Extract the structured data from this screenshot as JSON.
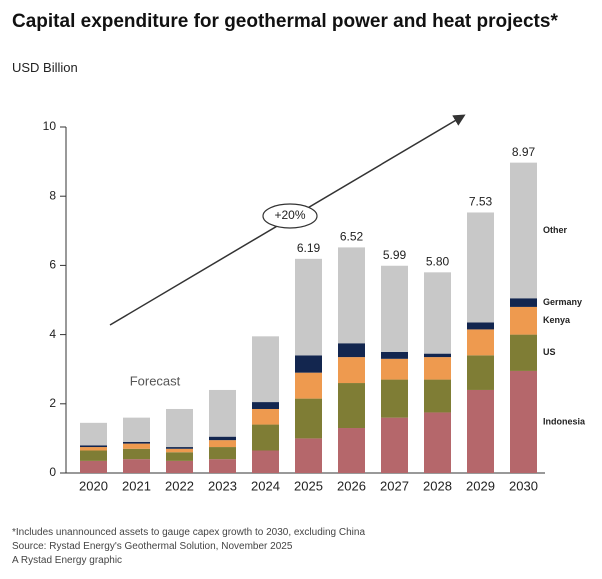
{
  "chart_data": {
    "type": "stacked_bar",
    "title": "Capital expenditure for geothermal power and heat projects*",
    "subtitle": "USD Billion",
    "categories": [
      "2020",
      "2021",
      "2022",
      "2023",
      "2024",
      "2025",
      "2026",
      "2027",
      "2028",
      "2029",
      "2030"
    ],
    "series": [
      {
        "name": "Indonesia",
        "color": "#b5676b",
        "values": [
          0.35,
          0.4,
          0.35,
          0.4,
          0.65,
          1.0,
          1.3,
          1.6,
          1.75,
          2.4,
          2.95
        ]
      },
      {
        "name": "US",
        "color": "#7f7d35",
        "values": [
          0.3,
          0.3,
          0.25,
          0.35,
          0.75,
          1.15,
          1.3,
          1.1,
          0.95,
          1.0,
          1.05
        ]
      },
      {
        "name": "Kenya",
        "color": "#ee9a4f",
        "values": [
          0.1,
          0.15,
          0.1,
          0.2,
          0.45,
          0.75,
          0.75,
          0.6,
          0.65,
          0.75,
          0.8
        ]
      },
      {
        "name": "Germany",
        "color": "#13264f",
        "values": [
          0.05,
          0.05,
          0.05,
          0.1,
          0.2,
          0.5,
          0.4,
          0.2,
          0.1,
          0.2,
          0.25
        ]
      },
      {
        "name": "Other",
        "color": "#c8c8c8",
        "values": [
          0.65,
          0.7,
          1.1,
          1.35,
          1.9,
          2.79,
          2.77,
          2.49,
          2.35,
          3.18,
          3.92
        ]
      }
    ],
    "totals": {
      "values": [
        null,
        null,
        null,
        null,
        null,
        6.19,
        6.52,
        5.99,
        5.8,
        7.53,
        8.97
      ],
      "value_labels": [
        null,
        null,
        null,
        null,
        null,
        "6.19",
        "6.52",
        "5.99",
        "5.80",
        "7.53",
        "8.97"
      ]
    },
    "ylim": [
      0,
      10
    ],
    "yticks": [
      0,
      2,
      4,
      6,
      8,
      10
    ],
    "annotations": [
      "+20%",
      "Forecast"
    ],
    "footnotes": [
      "*Includes unannounced assets to gauge capex growth to 2030, excluding China",
      "Source: Rystad Energy's Geothermal Solution, November 2025",
      "A Rystad Energy graphic"
    ]
  }
}
